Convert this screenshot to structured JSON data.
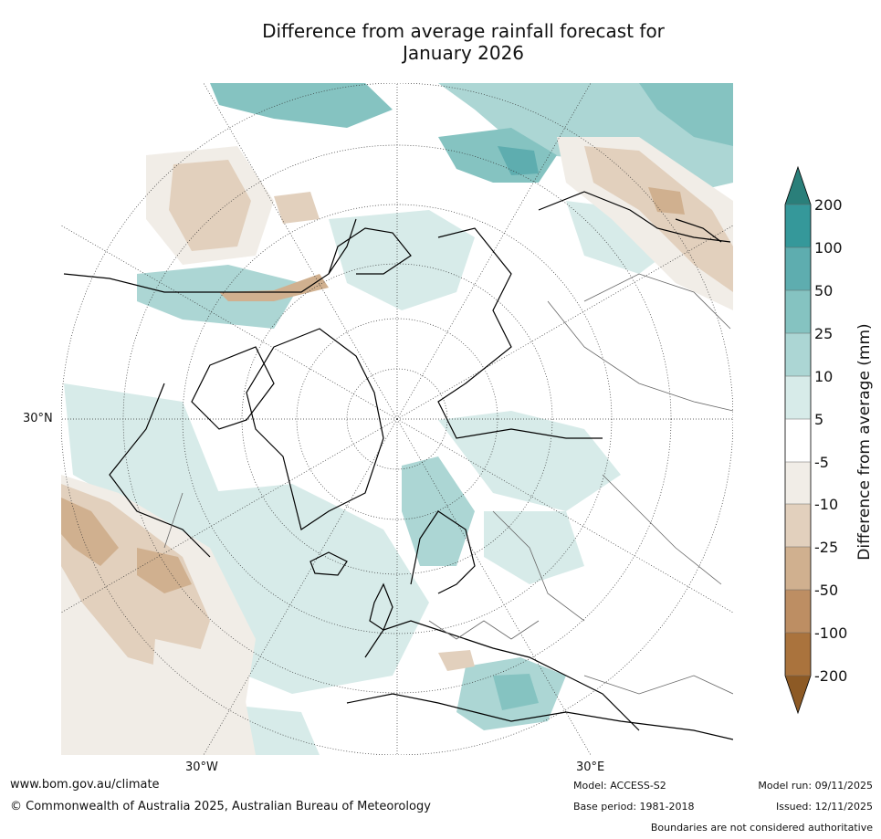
{
  "title": {
    "line1": "Difference from average rainfall forecast for",
    "line2": "January 2026"
  },
  "map": {
    "projection": "polar stereographic, Northern Hemisphere",
    "axis_labels": {
      "left": "30°N",
      "bottom_left": "30°W",
      "bottom_right": "30°E"
    }
  },
  "colorbar": {
    "title": "Difference from average (mm)",
    "ticks": [
      "200",
      "100",
      "50",
      "25",
      "10",
      "5",
      "-5",
      "-10",
      "-25",
      "-50",
      "-100",
      "-200"
    ],
    "colors": {
      "gt200": "#2a7f7a",
      "c100_200": "#35989a",
      "c50_100": "#5eadaf",
      "c25_50": "#85c3c1",
      "c10_25": "#acd6d4",
      "c5_10": "#d7ebe9",
      "neutral": "#ffffff",
      "n5_10": "#f1ede7",
      "n10_25": "#e2d0bd",
      "n25_50": "#d0b08f",
      "n50_100": "#bd8e63",
      "n100_200": "#aa733d",
      "lt_200": "#8d5a25"
    }
  },
  "footer": {
    "website": "www.bom.gov.au/climate",
    "copyright": "© Commonwealth of Australia 2025, Australian Bureau of Meteorology",
    "model": "Model: ACCESS-S2",
    "base_period": "Base period: 1981-2018",
    "model_run": "Model run: 09/11/2025",
    "issued": "Issued: 12/11/2025",
    "disclaimer": "Boundaries are not considered authoritative"
  }
}
